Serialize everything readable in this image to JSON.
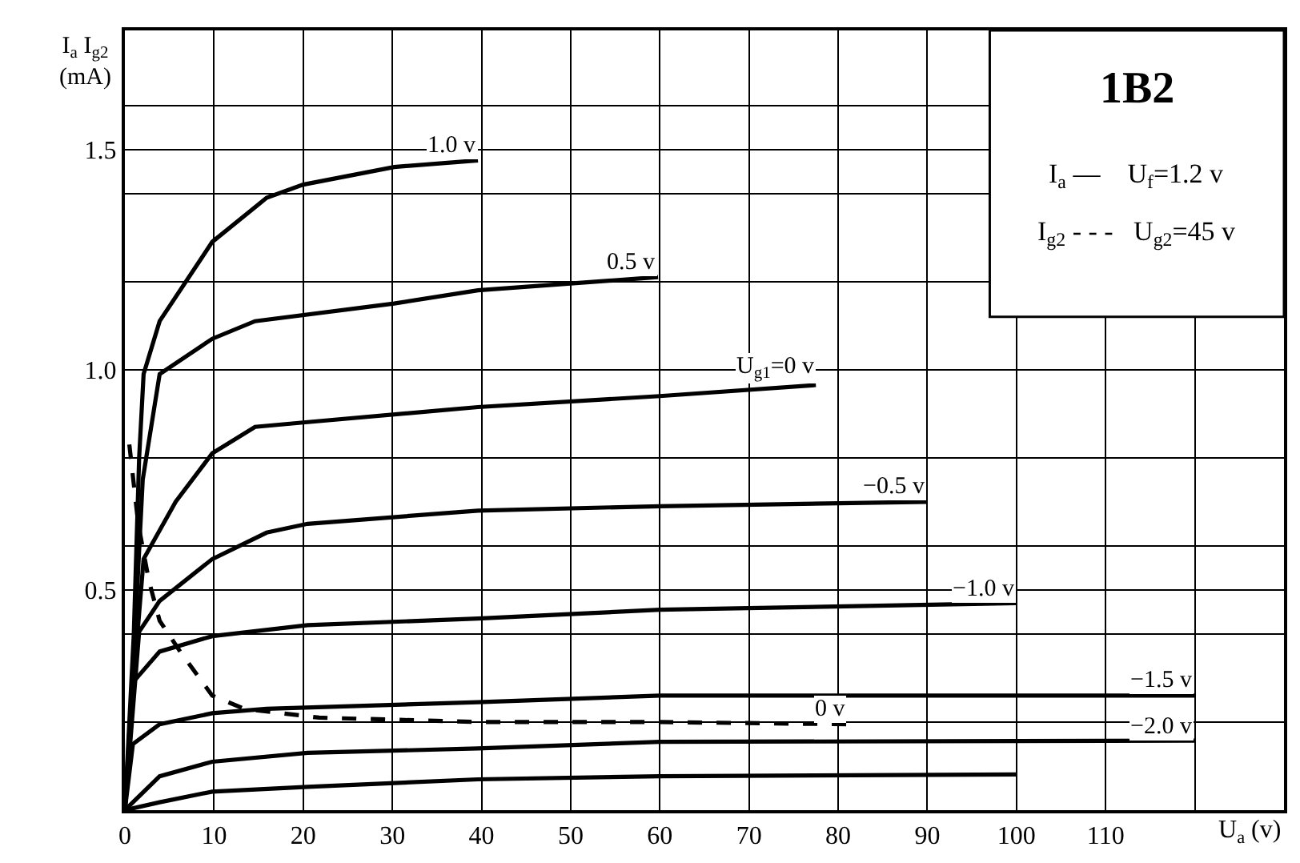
{
  "chart_data": {
    "type": "line",
    "title": "1B2",
    "xlabel": "U$_{a}$ (v)",
    "ylabel": "I$_{a}$ I$_{g2}$ (mA)",
    "annotations": [
      "I$_{a}$ —    U$_{f}$=1.2 v",
      "I$_{g2}$ - - -   U$_{g2}$=45 v"
    ],
    "xlim": [
      0,
      130
    ],
    "ylim": [
      0,
      1.77
    ],
    "xticks": [
      0,
      10,
      20,
      30,
      40,
      50,
      60,
      70,
      80,
      90,
      100,
      110,
      {
        "value": 120,
        "label": null
      }
    ],
    "yticks": [
      {
        "value": 0.2,
        "label": null
      },
      {
        "value": 0.4,
        "label": null
      },
      0.5,
      {
        "value": 0.6,
        "label": null
      },
      {
        "value": 0.8,
        "label": null
      },
      {
        "value": 1.0,
        "label": "1.0"
      },
      {
        "value": 1.2,
        "label": null
      },
      {
        "value": 1.4,
        "label": null
      },
      1.5,
      {
        "value": 1.6,
        "label": null
      }
    ],
    "grid": true,
    "legend": false,
    "marker": "none",
    "series": [
      {
        "name": "1.0 v",
        "color": "#000000",
        "line_style": "solid",
        "x": [
          0,
          1,
          1.6,
          2.1,
          3.9,
          9.8,
          15.9,
          20,
          30.2,
          39.6
        ],
        "values": [
          0,
          0.4,
          0.8,
          0.99,
          1.11,
          1.29,
          1.39,
          1.42,
          1.46,
          1.475
        ]
      },
      {
        "name": "0.5 v",
        "color": "#000000",
        "line_style": "solid",
        "x": [
          0,
          1,
          2,
          3.9,
          9.8,
          14.6,
          30.2,
          39.6,
          59.8
        ],
        "values": [
          0,
          0.35,
          0.75,
          0.99,
          1.07,
          1.11,
          1.15,
          1.18,
          1.21
        ]
      },
      {
        "name": "U$_{g1}$=0 v",
        "color": "#000000",
        "line_style": "solid",
        "x": [
          0,
          1,
          2.1,
          5.7,
          9.8,
          14.6,
          20,
          39.6,
          60,
          77.5
        ],
        "values": [
          0,
          0.3,
          0.57,
          0.7,
          0.81,
          0.87,
          0.88,
          0.915,
          0.94,
          0.965
        ]
      },
      {
        "name": "−0.5 v",
        "color": "#000000",
        "line_style": "solid",
        "x": [
          0,
          1.6,
          3.9,
          9.8,
          15.9,
          20.5,
          39.6,
          60,
          90
        ],
        "values": [
          0,
          0.405,
          0.475,
          0.57,
          0.63,
          0.65,
          0.68,
          0.69,
          0.7
        ]
      },
      {
        "name": "−1.0 v",
        "color": "#000000",
        "line_style": "solid",
        "x": [
          0,
          0.9,
          3.9,
          9.8,
          20.5,
          39.6,
          60,
          100
        ],
        "values": [
          0,
          0.29,
          0.36,
          0.395,
          0.42,
          0.435,
          0.455,
          0.47
        ]
      },
      {
        "name": "−1.5 v",
        "color": "#000000",
        "line_style": "solid",
        "x": [
          0,
          0.9,
          3.9,
          9.8,
          15.9,
          39.6,
          60,
          120
        ],
        "values": [
          0,
          0.15,
          0.195,
          0.22,
          0.23,
          0.245,
          0.26,
          0.26
        ]
      },
      {
        "name": "−2.0 v",
        "color": "#000000",
        "line_style": "solid",
        "x": [
          0,
          3.9,
          9.8,
          20.5,
          39.6,
          60,
          120
        ],
        "values": [
          0,
          0.077,
          0.11,
          0.13,
          0.14,
          0.155,
          0.158
        ]
      },
      {
        "color": "#000000",
        "line_style": "solid",
        "x": [
          0,
          3.9,
          9.8,
          20.5,
          39.6,
          60,
          100
        ],
        "values": [
          0,
          0.018,
          0.042,
          0.053,
          0.07,
          0.077,
          0.081
        ]
      },
      {
        "name": "0 v",
        "color": "#000000",
        "line_style": "dashed",
        "x": [
          0.5,
          1.5,
          2.7,
          3.9,
          6.2,
          9.8,
          13.4,
          21.8,
          39.6,
          60,
          81
        ],
        "values": [
          0.83,
          0.65,
          0.52,
          0.43,
          0.36,
          0.26,
          0.23,
          0.21,
          0.2,
          0.2,
          0.195
        ]
      }
    ]
  }
}
